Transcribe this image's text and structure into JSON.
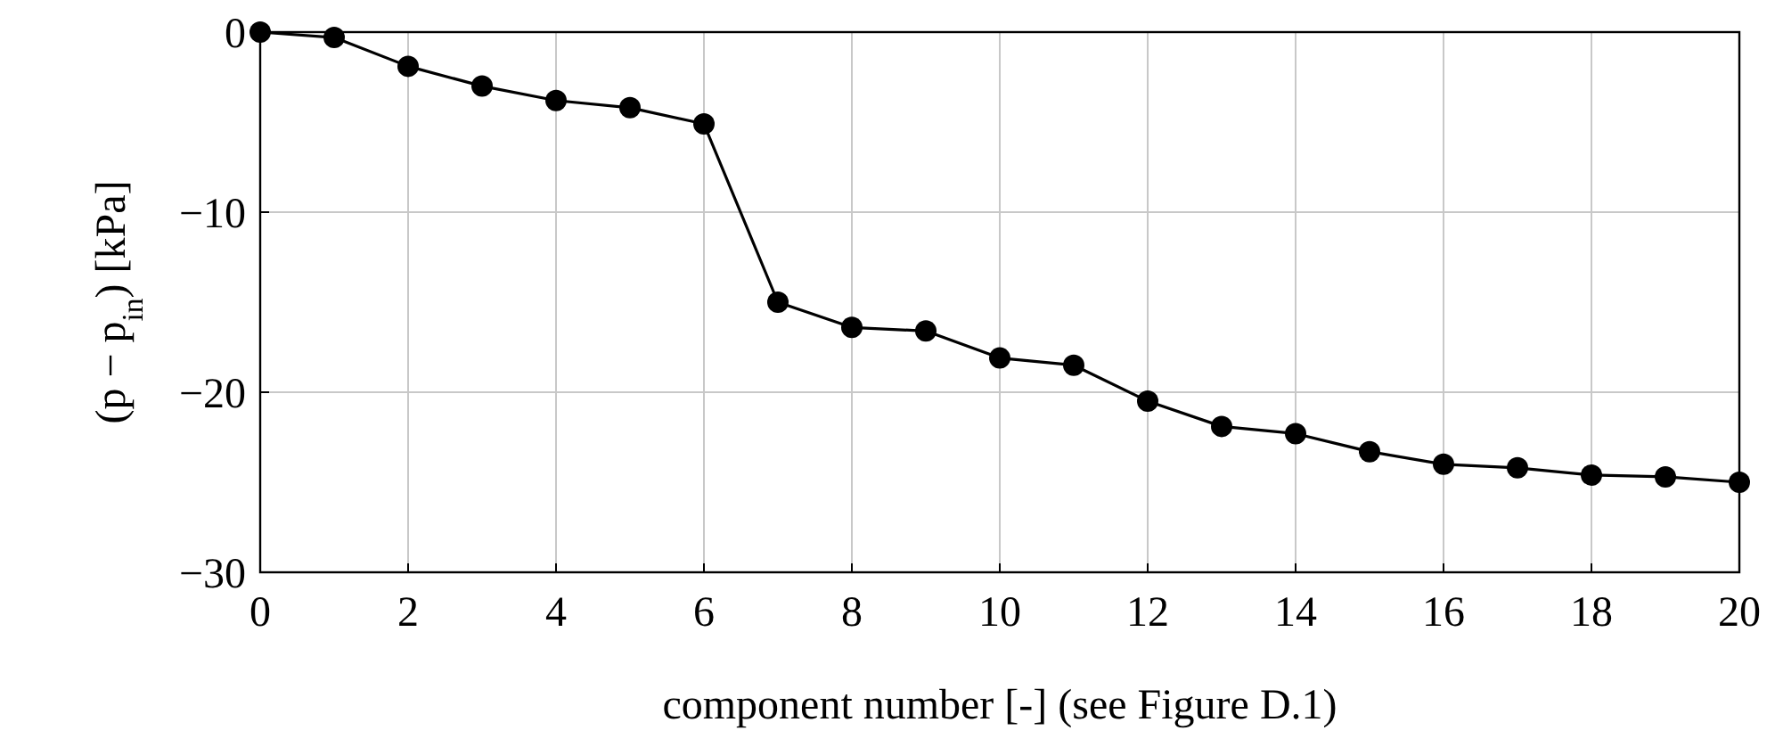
{
  "chart_data": {
    "type": "line",
    "xlabel": "component number [-] (see Figure D.1)",
    "ylabel": "(p − p$_{in}$) [kPa]",
    "x": [
      0,
      1,
      2,
      3,
      4,
      5,
      6,
      7,
      8,
      9,
      10,
      11,
      12,
      13,
      14,
      15,
      16,
      17,
      18,
      19,
      20
    ],
    "series": [
      {
        "color": "#000000",
        "values": [
          0,
          -0.3,
          -1.9,
          -3.0,
          -3.8,
          -4.2,
          -5.1,
          -15.0,
          -16.4,
          -16.6,
          -18.1,
          -18.5,
          -20.5,
          -21.9,
          -22.3,
          -23.3,
          -24.0,
          -24.2,
          -24.6,
          -24.7,
          -25.0
        ]
      }
    ],
    "xlim": [
      0,
      20
    ],
    "xticks": [
      0,
      2,
      4,
      6,
      8,
      10,
      12,
      14,
      16,
      18,
      20
    ],
    "ylim": [
      -30,
      0
    ],
    "yticks": [
      {
        "value": -30,
        "label": "−30"
      },
      {
        "value": -20,
        "label": "−20"
      },
      {
        "value": -10,
        "label": "−10"
      },
      0
    ],
    "grid": true,
    "marker": "circle",
    "line_style": "solid"
  }
}
